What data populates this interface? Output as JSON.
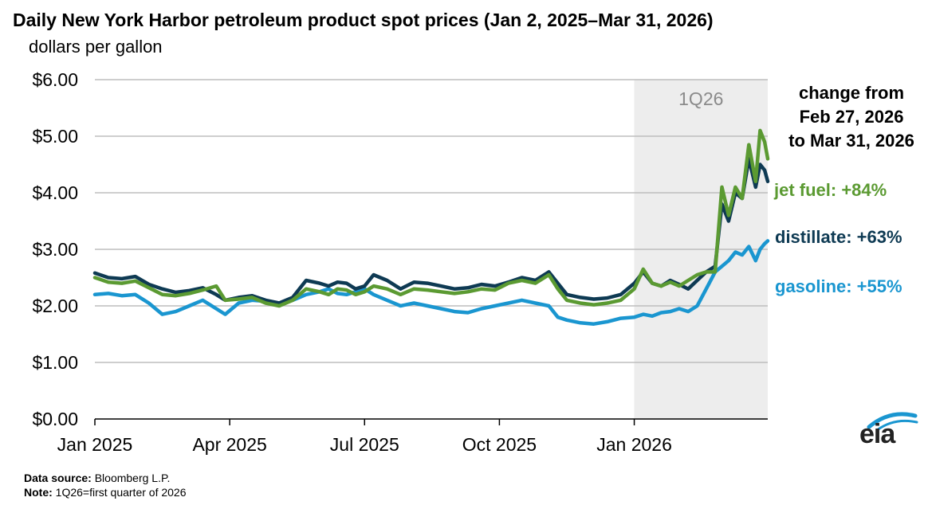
{
  "header": {
    "title": "Daily New York Harbor petroleum product spot prices (Jan 2, 2025–Mar 31, 2026)",
    "subtitle": "dollars per gallon"
  },
  "footer": {
    "source_label": "Data source:",
    "source_text": "Bloomberg L.P.",
    "note_label": "Note:",
    "note_text": "1Q26=first quarter of 2026"
  },
  "logo": {
    "text": "eia",
    "icon": "eia-swoosh-icon"
  },
  "colors": {
    "jet_fuel": "#5b9a32",
    "distillate": "#0e3a53",
    "gasoline": "#1a96d0",
    "shade": "#ededed",
    "grid": "#bdbdbd"
  },
  "chart_data": {
    "type": "line",
    "title": "Daily New York Harbor petroleum product spot prices (Jan 2, 2025–Mar 31, 2026)",
    "ylabel": "dollars per gallon",
    "xlabel": "",
    "ylim": [
      0,
      6
    ],
    "y_ticks": [
      0,
      1,
      2,
      3,
      4,
      5,
      6
    ],
    "y_tick_labels": [
      "$0.00",
      "$1.00",
      "$2.00",
      "$3.00",
      "$4.00",
      "$5.00",
      "$6.00"
    ],
    "x_range_months": [
      0,
      14.97
    ],
    "x_ticks": [
      0,
      3,
      6,
      9,
      12
    ],
    "x_tick_labels": [
      "Jan 2025",
      "Apr 2025",
      "Jul 2025",
      "Oct 2025",
      "Jan 2026"
    ],
    "shaded_region": {
      "label": "1Q26",
      "start_month": 12,
      "end_month": 14.97
    },
    "annotation_header": [
      "change from",
      "Feb 27, 2026",
      "to Mar 31, 2026"
    ],
    "annotations": [
      {
        "series": "jet fuel",
        "text": "jet fuel: +84%"
      },
      {
        "series": "distillate",
        "text": "distillate: +63%"
      },
      {
        "series": "gasoline",
        "text": "gasoline: +55%"
      }
    ],
    "series": [
      {
        "name": "distillate",
        "color": "#0e3a53",
        "x": [
          0,
          0.3,
          0.6,
          0.9,
          1.2,
          1.5,
          1.8,
          2.1,
          2.4,
          2.7,
          2.9,
          3.2,
          3.5,
          3.8,
          4.1,
          4.4,
          4.7,
          5.0,
          5.2,
          5.4,
          5.6,
          5.8,
          6.0,
          6.2,
          6.5,
          6.8,
          7.1,
          7.4,
          7.7,
          8.0,
          8.3,
          8.6,
          8.9,
          9.2,
          9.5,
          9.8,
          10.1,
          10.3,
          10.5,
          10.8,
          11.1,
          11.4,
          11.7,
          12.0,
          12.2,
          12.4,
          12.6,
          12.8,
          13.0,
          13.2,
          13.4,
          13.6,
          13.8,
          13.95,
          14.1,
          14.25,
          14.4,
          14.55,
          14.7,
          14.8,
          14.9,
          14.97
        ],
        "values": [
          2.58,
          2.5,
          2.48,
          2.52,
          2.38,
          2.3,
          2.24,
          2.27,
          2.32,
          2.2,
          2.1,
          2.15,
          2.18,
          2.1,
          2.05,
          2.15,
          2.45,
          2.4,
          2.35,
          2.42,
          2.4,
          2.3,
          2.35,
          2.55,
          2.45,
          2.3,
          2.42,
          2.4,
          2.35,
          2.3,
          2.32,
          2.38,
          2.35,
          2.42,
          2.5,
          2.45,
          2.6,
          2.4,
          2.2,
          2.15,
          2.12,
          2.14,
          2.2,
          2.4,
          2.6,
          2.4,
          2.35,
          2.45,
          2.38,
          2.3,
          2.45,
          2.6,
          2.7,
          3.8,
          3.5,
          4.0,
          3.9,
          4.6,
          4.1,
          4.5,
          4.4,
          4.2
        ]
      },
      {
        "name": "jet fuel",
        "color": "#5b9a32",
        "x": [
          0,
          0.3,
          0.6,
          0.9,
          1.2,
          1.5,
          1.8,
          2.1,
          2.4,
          2.7,
          2.9,
          3.2,
          3.5,
          3.8,
          4.1,
          4.4,
          4.7,
          5.0,
          5.2,
          5.4,
          5.6,
          5.8,
          6.0,
          6.2,
          6.5,
          6.8,
          7.1,
          7.4,
          7.7,
          8.0,
          8.3,
          8.6,
          8.9,
          9.2,
          9.5,
          9.8,
          10.1,
          10.3,
          10.5,
          10.8,
          11.1,
          11.4,
          11.7,
          12.0,
          12.2,
          12.4,
          12.6,
          12.8,
          13.0,
          13.2,
          13.4,
          13.6,
          13.8,
          13.95,
          14.1,
          14.25,
          14.4,
          14.55,
          14.7,
          14.8,
          14.9,
          14.97
        ],
        "values": [
          2.5,
          2.42,
          2.4,
          2.44,
          2.32,
          2.2,
          2.18,
          2.22,
          2.28,
          2.35,
          2.1,
          2.12,
          2.15,
          2.05,
          2.0,
          2.1,
          2.3,
          2.25,
          2.2,
          2.3,
          2.28,
          2.2,
          2.25,
          2.35,
          2.3,
          2.2,
          2.3,
          2.28,
          2.25,
          2.22,
          2.25,
          2.3,
          2.28,
          2.4,
          2.45,
          2.4,
          2.55,
          2.3,
          2.1,
          2.05,
          2.02,
          2.05,
          2.1,
          2.3,
          2.65,
          2.4,
          2.35,
          2.42,
          2.35,
          2.45,
          2.55,
          2.6,
          2.6,
          4.1,
          3.6,
          4.1,
          3.9,
          4.85,
          4.2,
          5.1,
          4.9,
          4.6
        ]
      },
      {
        "name": "gasoline",
        "color": "#1a96d0",
        "x": [
          0,
          0.3,
          0.6,
          0.9,
          1.2,
          1.5,
          1.8,
          2.1,
          2.4,
          2.7,
          2.9,
          3.2,
          3.5,
          3.8,
          4.1,
          4.4,
          4.7,
          5.0,
          5.2,
          5.4,
          5.6,
          5.8,
          6.0,
          6.2,
          6.5,
          6.8,
          7.1,
          7.4,
          7.7,
          8.0,
          8.3,
          8.6,
          8.9,
          9.2,
          9.5,
          9.8,
          10.1,
          10.3,
          10.5,
          10.8,
          11.1,
          11.4,
          11.7,
          12.0,
          12.2,
          12.4,
          12.6,
          12.8,
          13.0,
          13.2,
          13.4,
          13.6,
          13.8,
          13.95,
          14.1,
          14.25,
          14.4,
          14.55,
          14.7,
          14.8,
          14.9,
          14.97
        ],
        "values": [
          2.2,
          2.22,
          2.18,
          2.2,
          2.05,
          1.85,
          1.9,
          2.0,
          2.1,
          1.95,
          1.85,
          2.05,
          2.1,
          2.08,
          2.05,
          2.1,
          2.2,
          2.25,
          2.3,
          2.22,
          2.2,
          2.25,
          2.3,
          2.2,
          2.1,
          2.0,
          2.05,
          2.0,
          1.95,
          1.9,
          1.88,
          1.95,
          2.0,
          2.05,
          2.1,
          2.05,
          2.0,
          1.8,
          1.75,
          1.7,
          1.68,
          1.72,
          1.78,
          1.8,
          1.85,
          1.82,
          1.88,
          1.9,
          1.95,
          1.9,
          2.0,
          2.3,
          2.6,
          2.7,
          2.8,
          2.95,
          2.9,
          3.05,
          2.8,
          3.0,
          3.1,
          3.15
        ]
      }
    ]
  }
}
